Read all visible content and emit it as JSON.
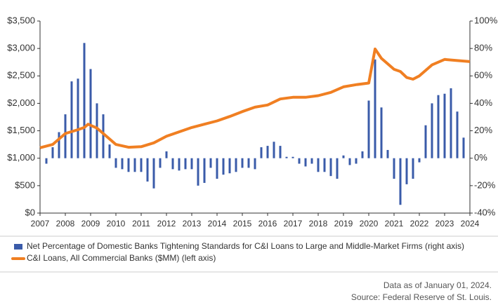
{
  "chart_data": {
    "type": "combo",
    "xlim": [
      2007,
      2024
    ],
    "xticks": [
      2007,
      2008,
      2009,
      2010,
      2011,
      2012,
      2013,
      2014,
      2015,
      2016,
      2017,
      2018,
      2019,
      2020,
      2021,
      2022,
      2023,
      2024
    ],
    "ylim": [
      0,
      3500
    ],
    "yticks": [
      {
        "value": 0,
        "label": "$0"
      },
      {
        "value": 500,
        "label": "$500"
      },
      {
        "value": 1000,
        "label": "$1,000"
      },
      {
        "value": 1500,
        "label": "$1,500"
      },
      {
        "value": 2000,
        "label": "$2,000"
      },
      {
        "value": 2500,
        "label": "$2,500"
      },
      {
        "value": 3000,
        "label": "$3,000"
      },
      {
        "value": 3500,
        "label": "$3,500"
      }
    ],
    "y2lim": [
      -40,
      100
    ],
    "y2ticks": [
      {
        "value": -40,
        "label": "-40%"
      },
      {
        "value": -20,
        "label": "-20%"
      },
      {
        "value": 0,
        "label": "0%"
      },
      {
        "value": 20,
        "label": "20%"
      },
      {
        "value": 40,
        "label": "40%"
      },
      {
        "value": 60,
        "label": "60%"
      },
      {
        "value": 80,
        "label": "80%"
      },
      {
        "value": 100,
        "label": "100%"
      }
    ],
    "series": [
      {
        "name": "Net Percentage of Domestic Banks Tightening Standards for C&I Loans to Large and Middle-Market Firms (right axis)",
        "type": "bar",
        "axis": "y2",
        "color": "#3a5ba9",
        "x": [
          2007.25,
          2007.5,
          2007.75,
          2008,
          2008.25,
          2008.5,
          2008.75,
          2009,
          2009.25,
          2009.5,
          2009.75,
          2010,
          2010.25,
          2010.5,
          2010.75,
          2011,
          2011.25,
          2011.5,
          2011.75,
          2012,
          2012.25,
          2012.5,
          2012.75,
          2013,
          2013.25,
          2013.5,
          2013.75,
          2014,
          2014.25,
          2014.5,
          2014.75,
          2015,
          2015.25,
          2015.5,
          2015.75,
          2016,
          2016.25,
          2016.5,
          2016.75,
          2017,
          2017.25,
          2017.5,
          2017.75,
          2018,
          2018.25,
          2018.5,
          2018.75,
          2019,
          2019.25,
          2019.5,
          2019.75,
          2020,
          2020.25,
          2020.5,
          2020.75,
          2021,
          2021.25,
          2021.5,
          2021.75,
          2022,
          2022.25,
          2022.5,
          2022.75,
          2023,
          2023.25,
          2023.5,
          2023.75
        ],
        "values": [
          -4,
          8,
          19,
          32,
          56,
          58,
          84,
          65,
          40,
          32,
          10,
          -7,
          -8,
          -10,
          -10,
          -10,
          -17,
          -22,
          -7,
          5,
          -8,
          -9,
          -8,
          -8,
          -20,
          -18,
          -7,
          -15,
          -12,
          -11,
          -10,
          -7,
          -7,
          -8,
          8,
          9,
          12,
          9,
          1,
          1,
          -4,
          -6,
          -4,
          -10,
          -10,
          -13,
          -15,
          2,
          -5,
          -4,
          5,
          42,
          72,
          37,
          6,
          -15,
          -34,
          -19,
          -15,
          -3,
          24,
          40,
          46,
          47,
          51,
          34,
          15
        ]
      },
      {
        "name": "C&I Loans, All Commercial Banks ($MM) (left axis)",
        "type": "line",
        "color": "#f07f22",
        "x": [
          2007,
          2007.5,
          2008,
          2008.5,
          2008.75,
          2008.9,
          2009.25,
          2009.5,
          2010,
          2010.5,
          2011,
          2011.5,
          2012,
          2012.5,
          2013,
          2013.5,
          2014,
          2014.5,
          2015,
          2015.5,
          2016,
          2016.5,
          2017,
          2017.5,
          2018,
          2018.5,
          2019,
          2019.5,
          2020,
          2020.25,
          2020.5,
          2021,
          2021.25,
          2021.5,
          2021.75,
          2022,
          2022.5,
          2023,
          2023.5,
          2024
        ],
        "values": [
          1190,
          1250,
          1450,
          1520,
          1560,
          1620,
          1550,
          1450,
          1250,
          1200,
          1210,
          1280,
          1400,
          1480,
          1560,
          1620,
          1680,
          1760,
          1850,
          1930,
          1970,
          2080,
          2110,
          2110,
          2140,
          2200,
          2300,
          2340,
          2370,
          2990,
          2820,
          2620,
          2580,
          2470,
          2440,
          2500,
          2700,
          2800,
          2780,
          2760
        ]
      }
    ],
    "footer": [
      "Data as of January 01, 2024.",
      "Source: Federal Reserve of St. Louis."
    ]
  }
}
